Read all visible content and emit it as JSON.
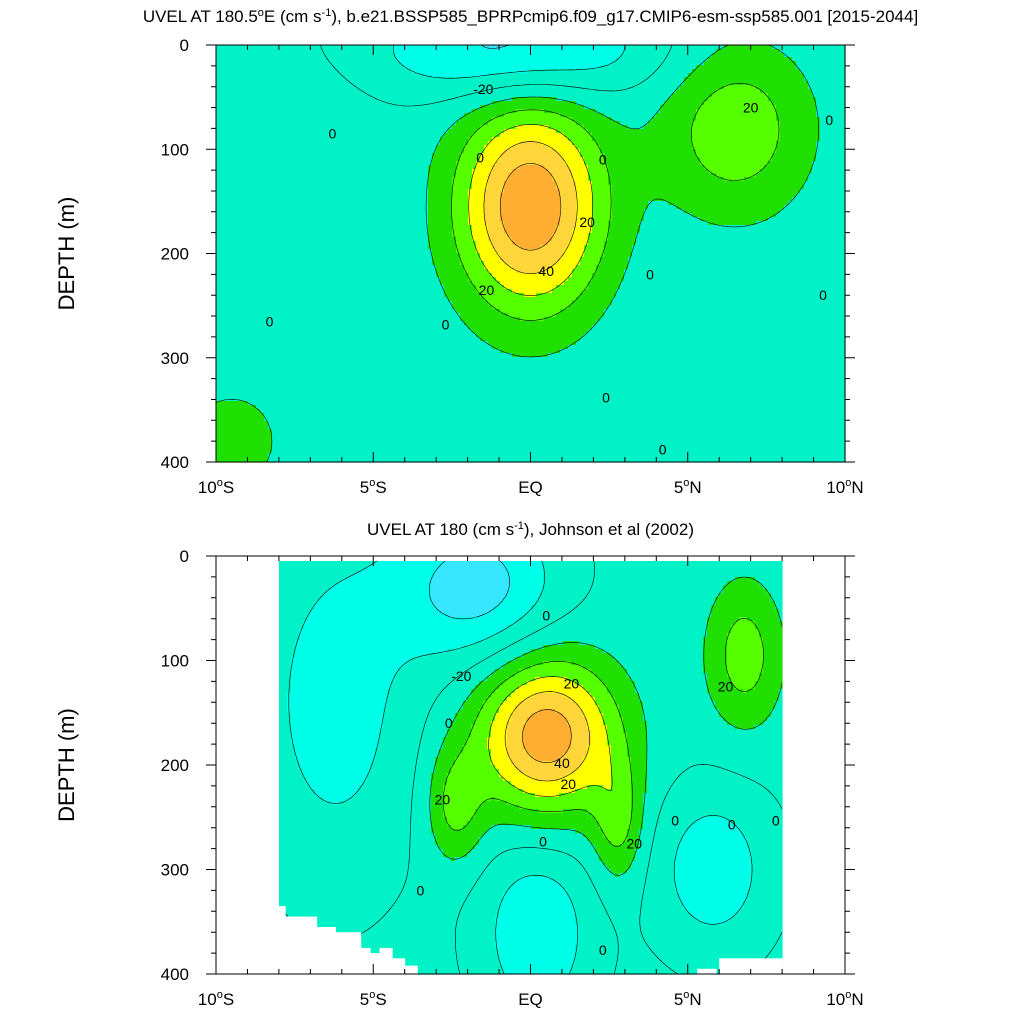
{
  "colors": {
    "-30": "#36e6ff",
    "-20": "#00ffe8",
    "-10": "#00f2c6",
    "0": "#1fe000",
    "10": "#55ff00",
    "20": "#ffff00",
    "30": "#ffd63a",
    "40": "#ffae32",
    "50": "#ff8c1e",
    "line": "#000000",
    "background": "#ffffff"
  },
  "chart_data": [
    {
      "type": "contour",
      "title_parts": [
        "UVEL AT 180.5",
        "o",
        "E (cm s",
        "-1",
        "), b.e21.BSSP585_BPRPcmip6.f09_g17.CMIP6-esm-ssp585.001 [2015-2044]"
      ],
      "ylabel": "DEPTH (m)",
      "x_ticks": [
        {
          "value": -10,
          "label": "10",
          "suffix": "S"
        },
        {
          "value": -5,
          "label": "5",
          "suffix": "S"
        },
        {
          "value": 0,
          "label": "EQ",
          "suffix": ""
        },
        {
          "value": 5,
          "label": "5",
          "suffix": "N"
        },
        {
          "value": 10,
          "label": "10",
          "suffix": "N"
        }
      ],
      "y_ticks": [
        {
          "value": 0,
          "label": "0"
        },
        {
          "value": 100,
          "label": "100"
        },
        {
          "value": 200,
          "label": "200"
        },
        {
          "value": 300,
          "label": "300"
        },
        {
          "value": 400,
          "label": "400"
        }
      ],
      "xlim": [
        -10,
        10
      ],
      "ylim": [
        0,
        400
      ],
      "y_inverted": true,
      "contour_interval": 10,
      "data_extent": {
        "lat": [
          -10,
          10
        ],
        "depth": [
          0,
          400
        ]
      },
      "features": [
        {
          "name": "undercurrent",
          "lat": 0,
          "depth": 155,
          "peak": 56,
          "lat_halfwidth": 2.3,
          "depth_halfwidth": 100
        },
        {
          "name": "nh-eastward-core",
          "lat": 6.5,
          "depth": 80,
          "peak": 24,
          "lat_halfwidth": 2.4,
          "depth_halfwidth": 85
        },
        {
          "name": "sh-surface-eastward",
          "lat": -8.8,
          "depth": 60,
          "peak": 7,
          "lat_halfwidth": 2.8,
          "depth_halfwidth": 55
        },
        {
          "name": "sh-deep-eastward",
          "lat": -9.5,
          "depth": 380,
          "peak": 8,
          "lat_halfwidth": 3.5,
          "depth_halfwidth": 110
        },
        {
          "name": "south-equatorial-current",
          "lat": -0.5,
          "depth": 5,
          "peak": -28,
          "lat_halfwidth": 4.5,
          "depth_halfwidth": 48
        }
      ],
      "contour_labels": [
        {
          "text": "-20",
          "lat": -1.5,
          "depth": 42
        },
        {
          "text": "0",
          "lat": -6.3,
          "depth": 85
        },
        {
          "text": "0",
          "lat": -1.6,
          "depth": 108
        },
        {
          "text": "0",
          "lat": 2.3,
          "depth": 110
        },
        {
          "text": "20",
          "lat": 7.0,
          "depth": 60
        },
        {
          "text": "0",
          "lat": 9.5,
          "depth": 72
        },
        {
          "text": "20",
          "lat": 1.8,
          "depth": 170
        },
        {
          "text": "40",
          "lat": 0.5,
          "depth": 217
        },
        {
          "text": "20",
          "lat": -1.4,
          "depth": 235
        },
        {
          "text": "0",
          "lat": 3.8,
          "depth": 220
        },
        {
          "text": "0",
          "lat": 9.3,
          "depth": 240
        },
        {
          "text": "0",
          "lat": -2.7,
          "depth": 268
        },
        {
          "text": "0",
          "lat": -8.3,
          "depth": 265
        },
        {
          "text": "0",
          "lat": 2.4,
          "depth": 338
        },
        {
          "text": "0",
          "lat": 4.2,
          "depth": 388
        }
      ]
    },
    {
      "type": "contour",
      "title_parts": [
        "UVEL AT 180 (cm s",
        "-1",
        "), Johnson et al (2002)"
      ],
      "ylabel": "DEPTH (m)",
      "x_ticks": [
        {
          "value": -10,
          "label": "10",
          "suffix": "S"
        },
        {
          "value": -5,
          "label": "5",
          "suffix": "S"
        },
        {
          "value": 0,
          "label": "EQ",
          "suffix": ""
        },
        {
          "value": 5,
          "label": "5",
          "suffix": "N"
        },
        {
          "value": 10,
          "label": "10",
          "suffix": "N"
        }
      ],
      "y_ticks": [
        {
          "value": 0,
          "label": "0"
        },
        {
          "value": 100,
          "label": "100"
        },
        {
          "value": 200,
          "label": "200"
        },
        {
          "value": 300,
          "label": "300"
        },
        {
          "value": 400,
          "label": "400"
        }
      ],
      "xlim": [
        -10,
        10
      ],
      "ylim": [
        0,
        400
      ],
      "y_inverted": true,
      "contour_interval": 10,
      "data_extent": {
        "lat": [
          -8,
          8
        ],
        "depth": [
          5,
          400
        ]
      },
      "masked_columns": [
        {
          "lat_from": -8.0,
          "lat_to": -7.8,
          "depth_max": 335
        },
        {
          "lat_from": -7.8,
          "lat_to": -6.8,
          "depth_max": 345
        },
        {
          "lat_from": -6.8,
          "lat_to": -6.2,
          "depth_max": 355
        },
        {
          "lat_from": -6.2,
          "lat_to": -5.4,
          "depth_max": 360
        },
        {
          "lat_from": -5.4,
          "lat_to": -5.1,
          "depth_max": 375
        },
        {
          "lat_from": -5.1,
          "lat_to": -4.8,
          "depth_max": 380
        },
        {
          "lat_from": -4.8,
          "lat_to": -4.4,
          "depth_max": 375
        },
        {
          "lat_from": -4.4,
          "lat_to": -4.0,
          "depth_max": 385
        },
        {
          "lat_from": -4.0,
          "lat_to": -3.6,
          "depth_max": 392
        },
        {
          "lat_from": 5.3,
          "lat_to": 5.9,
          "depth_max": 395
        },
        {
          "lat_from": 6.0,
          "lat_to": 8.0,
          "depth_max": 385
        }
      ],
      "features": [
        {
          "name": "undercurrent",
          "lat": 0.5,
          "depth": 172,
          "peak": 54,
          "lat_halfwidth": 2.2,
          "depth_halfwidth": 75
        },
        {
          "name": "undercurrent-deep-limb",
          "lat": 2.8,
          "depth": 255,
          "peak": 20,
          "lat_halfwidth": 0.8,
          "depth_halfwidth": 60
        },
        {
          "name": "undercurrent-west-limb",
          "lat": -2.4,
          "depth": 240,
          "peak": 20,
          "lat_halfwidth": 0.9,
          "depth_halfwidth": 55
        },
        {
          "name": "nh-eastward-core",
          "lat": 6.8,
          "depth": 95,
          "peak": 22,
          "lat_halfwidth": 1.2,
          "depth_halfwidth": 70
        },
        {
          "name": "south-equatorial-current",
          "lat": -1.7,
          "depth": 30,
          "peak": -28,
          "lat_halfwidth": 2.6,
          "depth_halfwidth": 75
        },
        {
          "name": "deep-westward",
          "lat": 0.2,
          "depth": 360,
          "peak": -22,
          "lat_halfwidth": 1.8,
          "depth_halfwidth": 90
        },
        {
          "name": "nh-westward",
          "lat": 5.8,
          "depth": 300,
          "peak": -20,
          "lat_halfwidth": 1.9,
          "depth_halfwidth": 80
        },
        {
          "name": "sh-westward",
          "lat": -6.2,
          "depth": 140,
          "peak": -18,
          "lat_halfwidth": 2.6,
          "depth_halfwidth": 170
        }
      ],
      "contour_labels": [
        {
          "text": "0",
          "lat": 0.5,
          "depth": 57
        },
        {
          "text": "-20",
          "lat": -2.2,
          "depth": 115
        },
        {
          "text": "20",
          "lat": 1.3,
          "depth": 122
        },
        {
          "text": "20",
          "lat": 6.2,
          "depth": 125
        },
        {
          "text": "0",
          "lat": -2.6,
          "depth": 160
        },
        {
          "text": "40",
          "lat": 1.0,
          "depth": 198
        },
        {
          "text": "20",
          "lat": 1.2,
          "depth": 218
        },
        {
          "text": "20",
          "lat": -2.8,
          "depth": 233
        },
        {
          "text": "0",
          "lat": 4.6,
          "depth": 253
        },
        {
          "text": "0",
          "lat": 6.4,
          "depth": 257
        },
        {
          "text": "0",
          "lat": 7.8,
          "depth": 253
        },
        {
          "text": "0",
          "lat": 0.4,
          "depth": 273
        },
        {
          "text": "20",
          "lat": 3.3,
          "depth": 275
        },
        {
          "text": "0",
          "lat": -3.5,
          "depth": 320
        },
        {
          "text": "0",
          "lat": 2.3,
          "depth": 377
        }
      ]
    }
  ]
}
